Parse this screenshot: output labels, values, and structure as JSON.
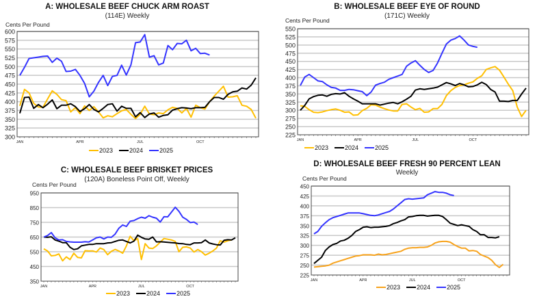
{
  "colors": {
    "2023": "#FFBF00",
    "2024": "#000000",
    "2025": "#3333FF",
    "2023_d": "#F7A21B"
  },
  "chart_data": [
    {
      "type": "line",
      "title": "A: WHOLESALE BEEF CHUCK ARM ROAST",
      "subtitle": "(114E) Weekly",
      "ylabel": "Cents Per Pound",
      "ylim": [
        300,
        600
      ],
      "yticks": [
        300,
        325,
        350,
        375,
        400,
        425,
        450,
        475,
        500,
        525,
        550,
        575,
        600
      ],
      "xticks": [
        "JAN",
        "APR",
        "JUL",
        "OCT"
      ],
      "x_unit": "week",
      "grid": true,
      "legend": "bottom",
      "series": [
        {
          "name": "2023",
          "values": [
            388,
            435,
            425,
            395,
            385,
            384,
            408,
            431,
            421,
            406,
            403,
            371,
            383,
            366,
            388,
            375,
            386,
            371,
            354,
            360,
            357,
            366,
            374,
            378,
            364,
            352,
            364,
            387,
            365,
            363,
            368,
            366,
            377,
            384,
            381,
            368,
            381,
            356,
            390,
            383,
            379,
            400,
            416,
            430,
            444,
            413,
            414,
            417,
            390,
            387,
            378,
            353
          ]
        },
        {
          "name": "2024",
          "values": [
            367,
            412,
            413,
            381,
            392,
            383,
            393,
            405,
            380,
            390,
            390,
            394,
            386,
            372,
            380,
            392,
            378,
            371,
            381,
            392,
            394,
            373,
            387,
            381,
            381,
            357,
            369,
            355,
            365,
            368,
            356,
            361,
            363,
            376,
            380,
            383,
            382,
            380,
            383,
            383,
            384,
            400,
            412,
            412,
            407,
            421,
            428,
            430,
            439,
            436,
            447,
            468
          ]
        },
        {
          "name": "2025",
          "values": [
            475,
            498,
            523,
            525,
            527,
            529,
            530,
            512,
            524,
            515,
            486,
            487,
            492,
            475,
            452,
            414,
            430,
            455,
            475,
            446,
            472,
            475,
            504,
            476,
            505,
            568,
            570,
            591,
            527,
            531,
            505,
            510,
            560,
            548,
            566,
            565,
            575,
            545,
            552,
            537,
            538,
            533
          ]
        }
      ]
    },
    {
      "type": "line",
      "title": "B: WHOLESALE BEEF EYE OF ROUND",
      "subtitle": "(171C) Weekly",
      "ylabel": "Cents Per Pound",
      "ylim": [
        225,
        550
      ],
      "yticks": [
        225,
        250,
        275,
        300,
        325,
        350,
        375,
        400,
        425,
        450,
        475,
        500,
        525,
        550
      ],
      "xticks": [
        "JAN",
        "APR",
        "JUL",
        "OCT"
      ],
      "x_unit": "week",
      "grid": true,
      "legend": "bottom",
      "series": [
        {
          "name": "2023",
          "values": [
            314,
            312,
            302,
            294,
            293,
            295,
            299,
            302,
            304,
            300,
            294,
            295,
            285,
            286,
            299,
            306,
            317,
            316,
            310,
            305,
            301,
            298,
            298,
            318,
            320,
            310,
            302,
            306,
            294,
            295,
            305,
            305,
            318,
            345,
            360,
            370,
            376,
            378,
            383,
            387,
            398,
            406,
            425,
            430,
            434,
            423,
            402,
            380,
            360,
            310,
            281,
            300
          ]
        },
        {
          "name": "2024",
          "values": [
            300,
            315,
            335,
            342,
            346,
            347,
            343,
            349,
            351,
            350,
            354,
            343,
            335,
            328,
            320,
            320,
            320,
            320,
            316,
            319,
            322,
            324,
            320,
            326,
            334,
            343,
            362,
            366,
            364,
            366,
            368,
            371,
            378,
            385,
            381,
            376,
            382,
            378,
            372,
            373,
            378,
            386,
            379,
            364,
            356,
            328,
            328,
            327,
            330,
            330,
            350,
            368
          ]
        },
        {
          "name": "2025",
          "values": [
            376,
            402,
            410,
            400,
            390,
            388,
            378,
            370,
            368,
            361,
            361,
            364,
            363,
            360,
            357,
            345,
            356,
            377,
            382,
            386,
            395,
            400,
            405,
            410,
            435,
            445,
            452,
            438,
            425,
            416,
            422,
            445,
            475,
            503,
            515,
            520,
            528,
            515,
            500,
            496,
            493
          ]
        }
      ]
    },
    {
      "type": "line",
      "title": "C: WHOLESALE BEEF BRISKET PRICES",
      "subtitle": "(120A) Boneless Point Off, Weekly",
      "ylabel": "Cents Per Pound",
      "ylim": [
        350,
        950
      ],
      "yticks": [
        350,
        450,
        550,
        650,
        750,
        850,
        950
      ],
      "xticks": [
        "JAN",
        "APR",
        "JUL",
        "OCT"
      ],
      "x_unit": "week",
      "grid": true,
      "legend": "bottom",
      "series": [
        {
          "name": "2023",
          "values": [
            570,
            555,
            522,
            525,
            535,
            488,
            515,
            497,
            540,
            512,
            508,
            557,
            555,
            556,
            548,
            575,
            565,
            530,
            553,
            566,
            555,
            540,
            590,
            655,
            625,
            640,
            497,
            605,
            575,
            572,
            590,
            615,
            640,
            635,
            630,
            620,
            550,
            580,
            583,
            575,
            548,
            565,
            550,
            527,
            540,
            555,
            575,
            625,
            615,
            625,
            630
          ]
        },
        {
          "name": "2024",
          "values": [
            650,
            648,
            652,
            630,
            622,
            612,
            612,
            580,
            565,
            570,
            590,
            595,
            600,
            600,
            605,
            605,
            605,
            610,
            612,
            620,
            628,
            630,
            620,
            610,
            622,
            663,
            648,
            637,
            635,
            650,
            617,
            618,
            616,
            614,
            612,
            610,
            606,
            605,
            600,
            598,
            610,
            610,
            612,
            630,
            610,
            603,
            598,
            596,
            628,
            632,
            630,
            645
          ]
        },
        {
          "name": "2025",
          "values": [
            650,
            660,
            680,
            645,
            630,
            632,
            620,
            617,
            615,
            615,
            615,
            618,
            616,
            630,
            645,
            650,
            637,
            650,
            648,
            670,
            710,
            732,
            722,
            758,
            762,
            775,
            785,
            778,
            795,
            785,
            778,
            752,
            788,
            787,
            820,
            853,
            825,
            785,
            770,
            748,
            752,
            735
          ]
        }
      ]
    },
    {
      "type": "line",
      "title": "D: WHOLESALE BEEF FRESH 90 PERCENT LEAN",
      "subtitle": "Weekly",
      "ylabel": "Cents Per Pound",
      "ylim": [
        225,
        450
      ],
      "yticks": [
        225,
        250,
        275,
        300,
        325,
        350,
        375,
        400,
        425,
        450
      ],
      "xticks": [
        "JAN",
        "APR",
        "JUL",
        "OCT"
      ],
      "x_unit": "week",
      "grid": true,
      "legend": "bottom",
      "series": [
        {
          "name": "2023",
          "values": [
            245,
            246,
            247,
            248,
            250,
            255,
            258,
            261,
            264,
            267,
            270,
            273,
            274,
            276,
            276,
            276,
            275,
            278,
            276,
            277,
            279,
            281,
            283,
            285,
            290,
            293,
            294,
            294,
            295,
            295,
            296,
            300,
            306,
            309,
            310,
            310,
            308,
            302,
            297,
            293,
            293,
            286,
            287,
            285,
            277,
            273,
            269,
            262,
            251,
            244,
            252
          ]
        },
        {
          "name": "2024",
          "values": [
            254,
            262,
            270,
            287,
            296,
            302,
            305,
            311,
            313,
            318,
            325,
            335,
            340,
            346,
            347,
            345,
            346,
            346,
            347,
            348,
            350,
            355,
            358,
            362,
            365,
            372,
            373,
            375,
            376,
            376,
            374,
            375,
            376,
            376,
            373,
            365,
            356,
            353,
            350,
            352,
            350,
            348,
            340,
            335,
            327,
            327,
            320,
            320,
            319,
            322
          ]
        },
        {
          "name": "2025",
          "values": [
            329,
            335,
            348,
            357,
            365,
            370,
            373,
            376,
            379,
            382,
            382,
            382,
            382,
            380,
            378,
            376,
            375,
            377,
            380,
            383,
            386,
            392,
            400,
            408,
            416,
            418,
            417,
            418,
            419,
            420,
            428,
            432,
            436,
            434,
            434,
            432,
            428,
            426
          ]
        }
      ]
    }
  ]
}
